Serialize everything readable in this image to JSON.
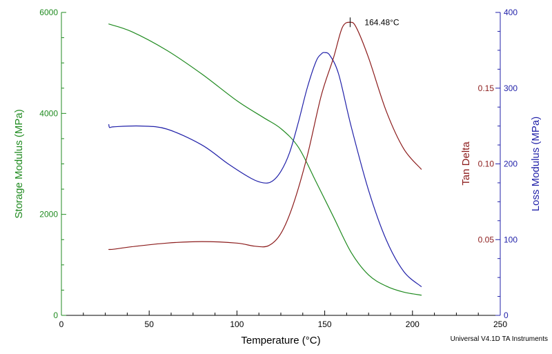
{
  "chart_data": {
    "type": "line",
    "xlabel": "Temperature (°C)",
    "xlim": [
      0,
      250
    ],
    "x_ticks": [
      0,
      50,
      100,
      150,
      200,
      250
    ],
    "axes": {
      "storage": {
        "label": "Storage Modulus (MPa)",
        "ylim": [
          0,
          6000
        ],
        "ticks": [
          0,
          2000,
          4000,
          6000
        ],
        "color": "#1f8a1f"
      },
      "loss": {
        "label": "Loss Modulus (MPa)",
        "ylim": [
          0,
          400
        ],
        "ticks": [
          0,
          100,
          200,
          300,
          400
        ],
        "color": "#1f1fa8"
      },
      "tan": {
        "label": "Tan Delta",
        "ylim": [
          0,
          0.2
        ],
        "ticks": [
          0.05,
          0.1,
          0.15
        ],
        "tick_labels": [
          "0.05",
          "0.10",
          "0.15"
        ],
        "color": "#8b1a1a"
      }
    },
    "grid": false,
    "series": [
      {
        "name": "Storage Modulus (MPa)",
        "axis": "storage",
        "color": "#1f8a1f",
        "points": [
          [
            27,
            5770
          ],
          [
            40,
            5620
          ],
          [
            60,
            5250
          ],
          [
            80,
            4780
          ],
          [
            100,
            4250
          ],
          [
            115,
            3920
          ],
          [
            125,
            3700
          ],
          [
            135,
            3330
          ],
          [
            145,
            2650
          ],
          [
            155,
            1950
          ],
          [
            165,
            1250
          ],
          [
            175,
            800
          ],
          [
            185,
            580
          ],
          [
            195,
            460
          ],
          [
            205,
            400
          ]
        ]
      },
      {
        "name": "Loss Modulus (MPa)",
        "axis": "loss",
        "color": "#1f1fa8",
        "points": [
          [
            27,
            252
          ],
          [
            27.5,
            248
          ],
          [
            30,
            249
          ],
          [
            45,
            250
          ],
          [
            60,
            246
          ],
          [
            80,
            225
          ],
          [
            95,
            200
          ],
          [
            108,
            181
          ],
          [
            115,
            175
          ],
          [
            120,
            177
          ],
          [
            125,
            190
          ],
          [
            130,
            215
          ],
          [
            135,
            255
          ],
          [
            140,
            300
          ],
          [
            145,
            335
          ],
          [
            148,
            345
          ],
          [
            150,
            347
          ],
          [
            153,
            343
          ],
          [
            158,
            318
          ],
          [
            165,
            250
          ],
          [
            175,
            165
          ],
          [
            185,
            100
          ],
          [
            195,
            58
          ],
          [
            205,
            38
          ]
        ]
      },
      {
        "name": "Tan Delta",
        "axis": "tan",
        "color": "#8b1a1a",
        "points": [
          [
            27,
            0.0435
          ],
          [
            30,
            0.0437
          ],
          [
            40,
            0.0453
          ],
          [
            60,
            0.0477
          ],
          [
            80,
            0.0487
          ],
          [
            100,
            0.0477
          ],
          [
            110,
            0.0457
          ],
          [
            118,
            0.046
          ],
          [
            125,
            0.054
          ],
          [
            132,
            0.073
          ],
          [
            140,
            0.105
          ],
          [
            148,
            0.145
          ],
          [
            155,
            0.17
          ],
          [
            160,
            0.19
          ],
          [
            164.48,
            0.1935
          ],
          [
            168,
            0.19
          ],
          [
            175,
            0.17
          ],
          [
            185,
            0.135
          ],
          [
            195,
            0.11
          ],
          [
            205,
            0.0965
          ]
        ]
      }
    ],
    "annotations": [
      {
        "text": "164.48°C",
        "x": 164.48,
        "axis": "tan",
        "y": 0.1935
      }
    ]
  },
  "footer": {
    "text": "Universal V4.1D TA Instruments"
  }
}
